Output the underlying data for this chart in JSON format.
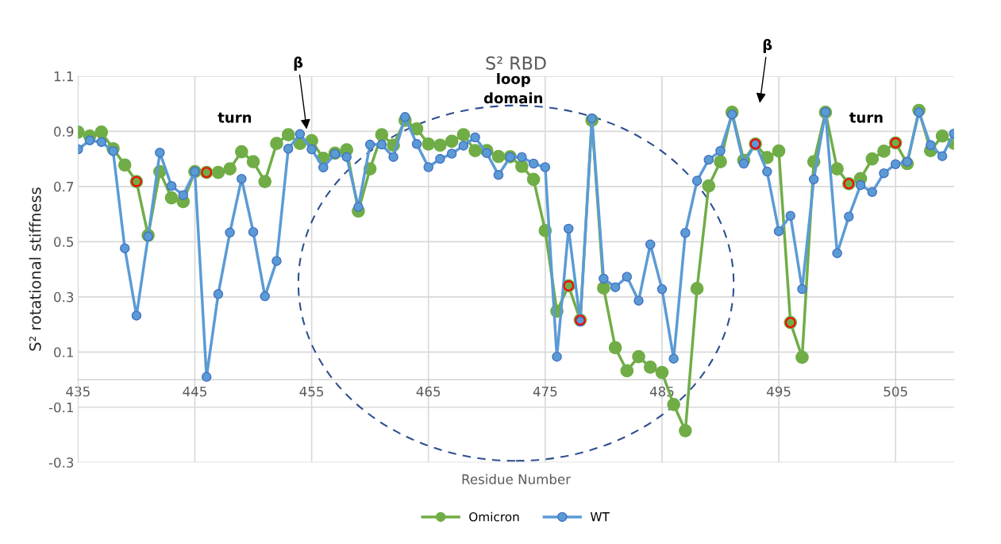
{
  "chart_data": {
    "type": "line",
    "title": "S² RBD",
    "xlabel": "Residue Number",
    "ylabel": "S² rotational stiffness",
    "x": [
      435,
      436,
      437,
      438,
      439,
      440,
      441,
      442,
      443,
      444,
      445,
      446,
      447,
      448,
      449,
      450,
      451,
      452,
      453,
      454,
      455,
      456,
      457,
      458,
      459,
      460,
      461,
      462,
      463,
      464,
      465,
      466,
      467,
      468,
      469,
      470,
      471,
      472,
      473,
      474,
      475,
      476,
      477,
      478,
      479,
      480,
      481,
      482,
      483,
      484,
      485,
      486,
      487,
      488,
      489,
      490,
      491,
      492,
      493,
      494,
      495,
      496,
      497,
      498,
      499,
      500,
      501,
      502,
      503,
      504,
      505,
      506,
      507,
      508,
      509,
      510
    ],
    "series": [
      {
        "name": "Omicron",
        "color": "#70ad47",
        "values": [
          0.897,
          0.883,
          0.897,
          0.837,
          0.778,
          0.718,
          0.523,
          0.754,
          0.659,
          0.645,
          0.754,
          0.751,
          0.751,
          0.764,
          0.826,
          0.79,
          0.718,
          0.856,
          0.888,
          0.856,
          0.866,
          0.802,
          0.821,
          0.833,
          0.611,
          0.764,
          0.888,
          0.85,
          0.94,
          0.909,
          0.854,
          0.85,
          0.864,
          0.888,
          0.83,
          0.83,
          0.809,
          0.808,
          0.773,
          0.726,
          0.54,
          0.248,
          0.34,
          0.216,
          0.94,
          0.332,
          0.116,
          0.032,
          0.083,
          0.045,
          0.026,
          -0.09,
          -0.185,
          0.33,
          0.702,
          0.79,
          0.969,
          0.795,
          0.854,
          0.805,
          0.829,
          0.207,
          0.081,
          0.79,
          0.969,
          0.764,
          0.71,
          0.729,
          0.8,
          0.828,
          0.858,
          0.783,
          0.976,
          0.83,
          0.883,
          0.857
        ]
      },
      {
        "name": "WT",
        "color": "#5b9bd5",
        "values": [
          0.835,
          0.867,
          0.861,
          0.828,
          0.476,
          0.232,
          0.519,
          0.823,
          0.702,
          0.669,
          0.754,
          0.01,
          0.31,
          0.533,
          0.728,
          0.535,
          0.302,
          0.43,
          0.837,
          0.89,
          0.835,
          0.769,
          0.818,
          0.807,
          0.626,
          0.852,
          0.852,
          0.807,
          0.952,
          0.854,
          0.77,
          0.8,
          0.819,
          0.848,
          0.878,
          0.821,
          0.742,
          0.807,
          0.807,
          0.783,
          0.77,
          0.083,
          0.547,
          0.21,
          0.947,
          0.366,
          0.335,
          0.373,
          0.286,
          0.49,
          0.328,
          0.076,
          0.532,
          0.721,
          0.797,
          0.829,
          0.961,
          0.783,
          0.856,
          0.754,
          0.538,
          0.594,
          0.328,
          0.726,
          0.97,
          0.458,
          0.591,
          0.705,
          0.68,
          0.748,
          0.781,
          0.79,
          0.969,
          0.85,
          0.81,
          0.892
        ]
      },
      {
        "type": "scatter",
        "color": "#ff0000",
        "x": [
          440,
          446,
          477,
          478,
          493,
          496,
          501,
          505
        ],
        "values": [
          0.718,
          0.751,
          0.34,
          0.216,
          0.854,
          0.207,
          0.71,
          0.858
        ]
      }
    ],
    "xlim": [
      435,
      510
    ],
    "xticks": [
      435,
      445,
      455,
      465,
      475,
      485,
      495,
      505
    ],
    "ylim": [
      -0.3,
      1.1
    ],
    "yticks": [
      -0.3,
      -0.1,
      0.1,
      0.3,
      0.5,
      0.7,
      0.9,
      1.1
    ],
    "grid": true,
    "legend": "bottom",
    "marker": "circle",
    "line_style": "solid",
    "annotations": [
      "turn",
      {
        "text": "β",
        "x": 454.6,
        "y": 0.9
      },
      "loop\ndomain",
      "β",
      "turn"
    ]
  }
}
